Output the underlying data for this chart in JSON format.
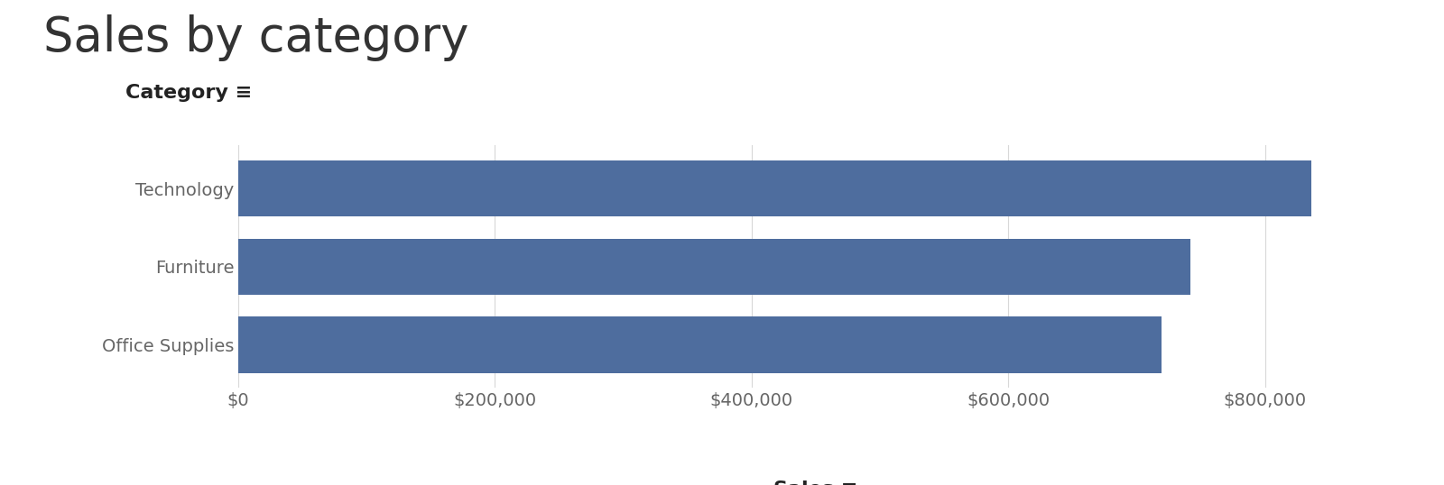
{
  "title": "Sales by category",
  "categories": [
    "Technology",
    "Furniture",
    "Office Supplies"
  ],
  "values": [
    836154,
    742000,
    719047
  ],
  "bar_color": "#4e6d9e",
  "background_color": "#ffffff",
  "xlim": [
    0,
    900000
  ],
  "xticks": [
    0,
    200000,
    400000,
    600000,
    800000
  ],
  "title_fontsize": 38,
  "category_label_fontsize": 16,
  "sales_label_fontsize": 16,
  "tick_fontsize": 14,
  "bar_height": 0.72,
  "grid_color": "#d8d8d8",
  "text_color": "#666666",
  "title_color": "#333333",
  "label_color": "#222222"
}
